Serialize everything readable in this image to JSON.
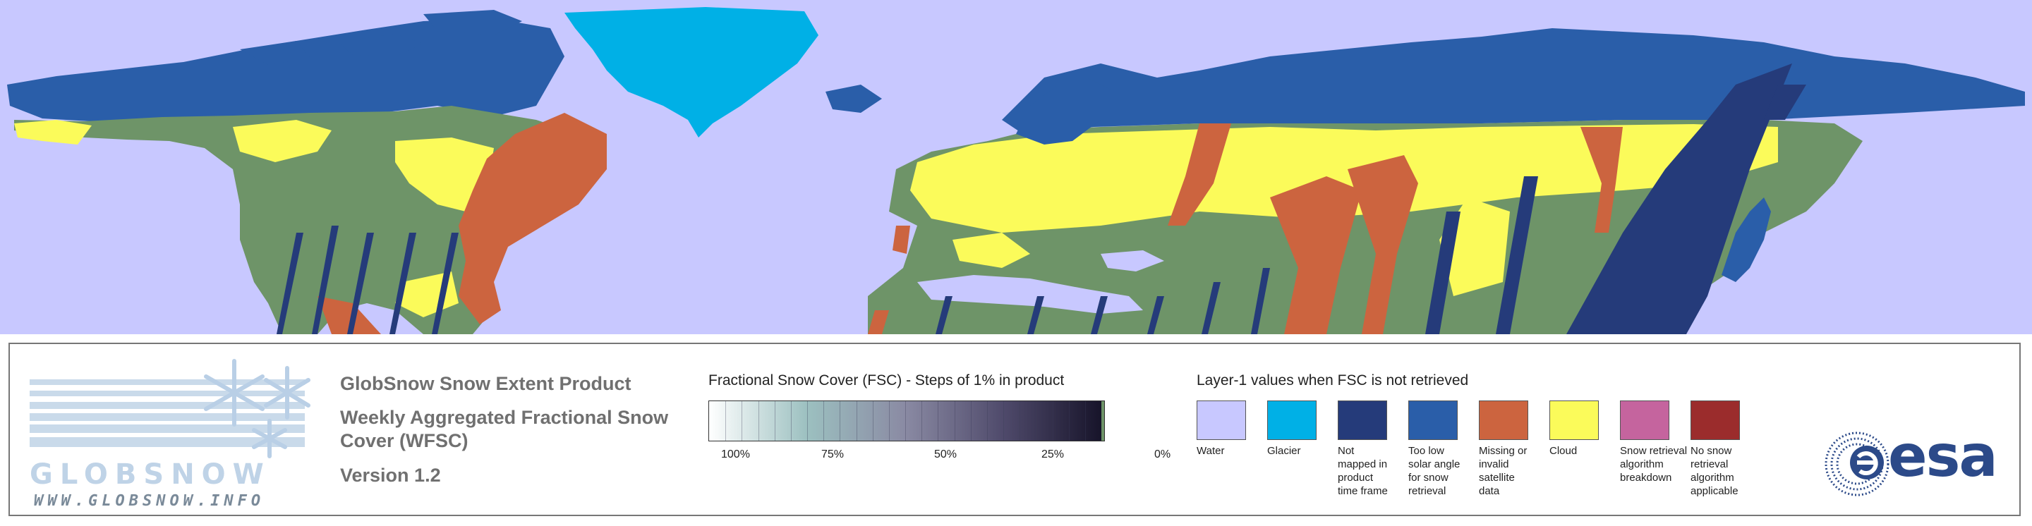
{
  "product": {
    "logo_word": "GLOBSNOW",
    "logo_url": "WWW.GLOBSNOW.INFO",
    "title": "GlobSnow Snow Extent Product",
    "subtitle_line1": "Weekly Aggregated Fractional Snow",
    "subtitle_line2": "Cover (WFSC)",
    "version": "Version 1.2"
  },
  "fsc_legend": {
    "title": "Fractional Snow Cover (FSC) - Steps of 1% in product",
    "ticks": [
      "100%",
      "75%",
      "50%",
      "25%",
      "0%"
    ],
    "gradient_colors": [
      "#ffffff",
      "#9cc0c0",
      "#8a8aa3",
      "#4f4a6b",
      "#17142a"
    ],
    "zero_color": "#6e9468"
  },
  "layer1_legend": {
    "title": "Layer-1 values when FSC is not retrieved",
    "items": [
      {
        "color": "#c8c8ff",
        "label_lines": [
          "Water"
        ]
      },
      {
        "color": "#00b0e6",
        "label_lines": [
          "Glacier"
        ]
      },
      {
        "color": "#253b7a",
        "label_lines": [
          "Not",
          "mapped in",
          "product",
          "time frame"
        ]
      },
      {
        "color": "#2a5ea9",
        "label_lines": [
          "Too low",
          "solar angle",
          "for snow",
          "retrieval"
        ]
      },
      {
        "color": "#cc643f",
        "label_lines": [
          "Missing or",
          "invalid satellite",
          "data"
        ]
      },
      {
        "color": "#fbfb5a",
        "label_lines": [
          "Cloud"
        ]
      },
      {
        "color": "#c5649e",
        "label_lines": [
          "Snow retrieval",
          "algorithm",
          "breakdown"
        ]
      },
      {
        "color": "#9b2c2c",
        "label_lines": [
          "No snow",
          "retrieval",
          "algorithm",
          "applicable"
        ]
      }
    ]
  },
  "agency_logo": {
    "text": "esa",
    "color": "#2c4a89"
  },
  "map_colors": {
    "water": "#c8c8ff",
    "glacier": "#00b0e6",
    "not_mapped": "#253b7a",
    "low_sun": "#2a5ea9",
    "missing": "#cc643f",
    "cloud": "#fbfb5a",
    "snow_free": "#6e9468"
  }
}
